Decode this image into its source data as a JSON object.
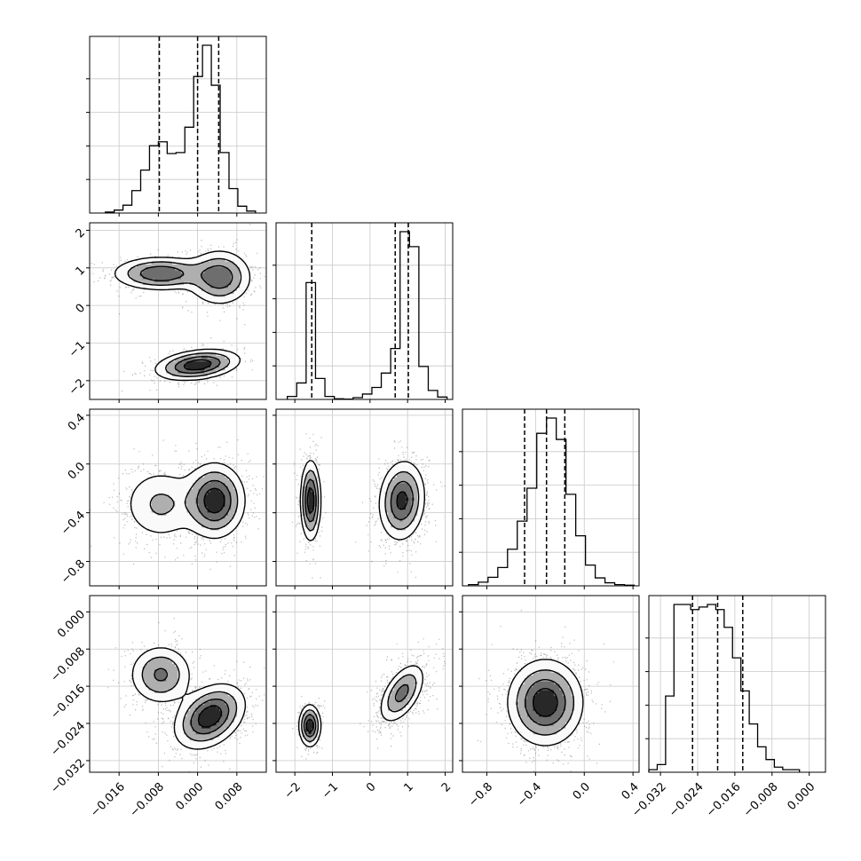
{
  "chart_data": {
    "type": "corner",
    "parameters": [
      {
        "xlim": [
          -0.022,
          0.014
        ],
        "ylim": [
          -2.45,
          2.35
        ],
        "xticks": [
          -0.016,
          -0.008,
          0.0,
          0.008
        ],
        "xtick_labels": [
          "−0.016",
          "−0.008",
          "0.000",
          "0.008"
        ],
        "quantiles": [
          -0.0078,
          0.0,
          0.0043
        ],
        "histogram": {
          "edges": [
            -0.0188,
            -0.017,
            -0.0152,
            -0.0134,
            -0.0116,
            -0.0098,
            -0.008,
            -0.0062,
            -0.0044,
            -0.0026,
            -0.0008,
            0.001,
            0.0028,
            0.0046,
            0.0064,
            0.0082,
            0.01,
            0.0118
          ],
          "counts": [
            1,
            3,
            8,
            23,
            44,
            69,
            73,
            61,
            62,
            88,
            140,
            172,
            131,
            62,
            25,
            7,
            2
          ]
        }
      },
      {
        "xlim": [
          -2.5,
          2.2
        ],
        "ylim": [
          -1.0,
          0.45
        ],
        "xticks": [
          -2,
          -1,
          0,
          1,
          2
        ],
        "xtick_labels": [
          "−2",
          "−1",
          "0",
          "1",
          "2"
        ],
        "yticks": [
          -2,
          -1,
          0,
          1,
          2
        ],
        "ytick_labels": [
          "−2",
          "−1",
          "0",
          "1",
          "2"
        ],
        "quantiles": [
          -1.55,
          0.67,
          1.02
        ],
        "histogram": {
          "edges": [
            -2.2,
            -1.95,
            -1.7,
            -1.45,
            -1.2,
            -0.95,
            -0.7,
            -0.45,
            -0.2,
            0.05,
            0.3,
            0.55,
            0.8,
            1.05,
            1.3,
            1.55,
            1.8,
            2.05
          ],
          "counts": [
            10,
            55,
            390,
            70,
            10,
            2,
            1,
            6,
            18,
            40,
            88,
            170,
            560,
            510,
            110,
            30,
            8
          ]
        }
      },
      {
        "xlim": [
          -1.0,
          0.45
        ],
        "ylim": [
          -0.033,
          0.003
        ],
        "xticks": [
          -0.8,
          -0.4,
          0.0,
          0.4
        ],
        "xtick_labels": [
          "−0.8",
          "−0.4",
          "0.0",
          "0.4"
        ],
        "yticks": [
          0.4,
          0.0,
          -0.4,
          -0.8
        ],
        "ytick_labels": [
          "0.4",
          "0.0",
          "−0.4",
          "−0.8"
        ],
        "quantiles": [
          -0.49,
          -0.31,
          -0.16
        ],
        "histogram": {
          "edges": [
            -0.95,
            -0.87,
            -0.79,
            -0.71,
            -0.63,
            -0.55,
            -0.47,
            -0.39,
            -0.31,
            -0.23,
            -0.15,
            -0.07,
            0.01,
            0.09,
            0.17,
            0.25,
            0.33,
            0.41
          ],
          "counts": [
            2,
            6,
            14,
            30,
            60,
            106,
            160,
            250,
            275,
            240,
            150,
            82,
            34,
            13,
            5,
            2,
            1
          ]
        }
      },
      {
        "xlim": [
          -0.0345,
          0.0035
        ],
        "ylim": [
          -0.032,
          0.003
        ],
        "xticks": [
          -0.032,
          -0.024,
          -0.016,
          -0.008,
          0.0
        ],
        "xtick_labels": [
          "−0.032",
          "−0.024",
          "−0.016",
          "−0.008",
          "0.000"
        ],
        "yticks": [
          0.0,
          -0.008,
          -0.016,
          -0.024,
          -0.032
        ],
        "ytick_labels": [
          "0.000",
          "−0.008",
          "−0.016",
          "−0.024",
          "−0.032"
        ],
        "quantiles": [
          -0.0251,
          -0.0197,
          -0.0143
        ],
        "histogram": {
          "edges": [
            -0.0345,
            -0.0327,
            -0.0309,
            -0.0291,
            -0.0273,
            -0.0255,
            -0.0237,
            -0.0219,
            -0.0201,
            -0.0183,
            -0.0165,
            -0.0147,
            -0.0129,
            -0.0111,
            -0.0093,
            -0.0075,
            -0.0057,
            -0.0039,
            -0.0021
          ],
          "counts": [
            1,
            3,
            30,
            66,
            66,
            64,
            65,
            66,
            64,
            57,
            45,
            32,
            19,
            10,
            5,
            2,
            1,
            1
          ]
        }
      }
    ],
    "histogram_ytick_fractions": [
      0.2,
      0.4,
      0.6,
      0.8
    ],
    "panels_2d": [
      {
        "row": 1,
        "col": 0,
        "modes": [
          {
            "x": -0.0075,
            "y": 0.85,
            "sx": 0.0048,
            "sy": 0.22,
            "rho": 0.0,
            "w": 0.33
          },
          {
            "x": 0.0045,
            "y": 0.75,
            "sx": 0.0032,
            "sy": 0.36,
            "rho": 0.0,
            "w": 0.34
          },
          {
            "x": 0.0,
            "y": -1.58,
            "sx": 0.0042,
            "sy": 0.2,
            "rho": 0.3,
            "w": 0.33
          }
        ]
      },
      {
        "row": 2,
        "col": 0,
        "modes": [
          {
            "x": -0.0075,
            "y": -0.33,
            "sx": 0.0042,
            "sy": 0.16,
            "rho": 0.0,
            "w": 0.34
          },
          {
            "x": 0.0035,
            "y": -0.3,
            "sx": 0.003,
            "sy": 0.15,
            "rho": 0.0,
            "w": 0.66
          }
        ]
      },
      {
        "row": 2,
        "col": 1,
        "modes": [
          {
            "x": -1.58,
            "y": -0.3,
            "sx": 0.13,
            "sy": 0.16,
            "rho": 0.0,
            "w": 0.33
          },
          {
            "x": 0.85,
            "y": -0.3,
            "sx": 0.3,
            "sy": 0.16,
            "rho": 0.1,
            "w": 0.67
          }
        ]
      },
      {
        "row": 3,
        "col": 0,
        "modes": [
          {
            "x": -0.0075,
            "y": -0.0135,
            "sx": 0.0032,
            "sy": 0.0032,
            "rho": 0.0,
            "w": 0.34
          },
          {
            "x": 0.0025,
            "y": -0.0225,
            "sx": 0.0035,
            "sy": 0.0034,
            "rho": 0.35,
            "w": 0.66
          }
        ]
      },
      {
        "row": 3,
        "col": 1,
        "modes": [
          {
            "x": -1.6,
            "y": -0.0245,
            "sx": 0.14,
            "sy": 0.0022,
            "rho": 0.0,
            "w": 0.33
          },
          {
            "x": 0.85,
            "y": -0.0175,
            "sx": 0.3,
            "sy": 0.0032,
            "rho": 0.55,
            "w": 0.67
          }
        ]
      },
      {
        "row": 3,
        "col": 2,
        "modes": [
          {
            "x": -0.32,
            "y": -0.0195,
            "sx": 0.15,
            "sy": 0.0045,
            "rho": 0.0,
            "w": 1.0
          }
        ]
      }
    ],
    "grid": true,
    "contour_levels": 4
  }
}
